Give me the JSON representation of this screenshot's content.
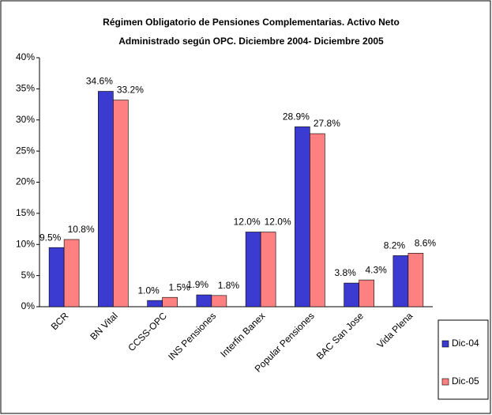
{
  "chart_data": {
    "type": "bar",
    "title": "Régimen Obligatorio de Pensiones Complementarias. Activo Neto",
    "subtitle": "Administrado según OPC. Diciembre 2004- Diciembre 2005",
    "categories": [
      "BCR",
      "BN Vital",
      "CCSS-OPC",
      "INS Pensiones",
      "Interfin Banex",
      "Popular Pensiones",
      "BAC San Jose",
      "Vida Plena"
    ],
    "series": [
      {
        "name": "Dic-04",
        "color": "#3b3bd1",
        "values": [
          9.5,
          34.6,
          1.0,
          1.9,
          12.0,
          28.9,
          3.8,
          8.2
        ],
        "value_labels": [
          "9.5%",
          "34.6%",
          "1.0%",
          "1.9%",
          "12.0%",
          "28.9%",
          "3.8%",
          "8.2%"
        ]
      },
      {
        "name": "Dic-05",
        "color": "#ff8080",
        "values": [
          10.8,
          33.2,
          1.5,
          1.8,
          12.0,
          27.8,
          4.3,
          8.6
        ],
        "value_labels": [
          "10.8%",
          "33.2%",
          "1.5%",
          "1.8%",
          "12.0%",
          "27.8%",
          "4.3%",
          "8.6%"
        ]
      }
    ],
    "ylim": [
      0,
      40
    ],
    "yticks": [
      {
        "value": 0,
        "label": "0%"
      },
      {
        "value": 5,
        "label": "5%"
      },
      {
        "value": 10,
        "label": "10%"
      },
      {
        "value": 15,
        "label": "15%"
      },
      {
        "value": 20,
        "label": "20%"
      },
      {
        "value": 25,
        "label": "25%"
      },
      {
        "value": 30,
        "label": "30%"
      },
      {
        "value": 35,
        "label": "35%"
      },
      {
        "value": 40,
        "label": "40%"
      }
    ],
    "grid": false,
    "legend": "right"
  }
}
